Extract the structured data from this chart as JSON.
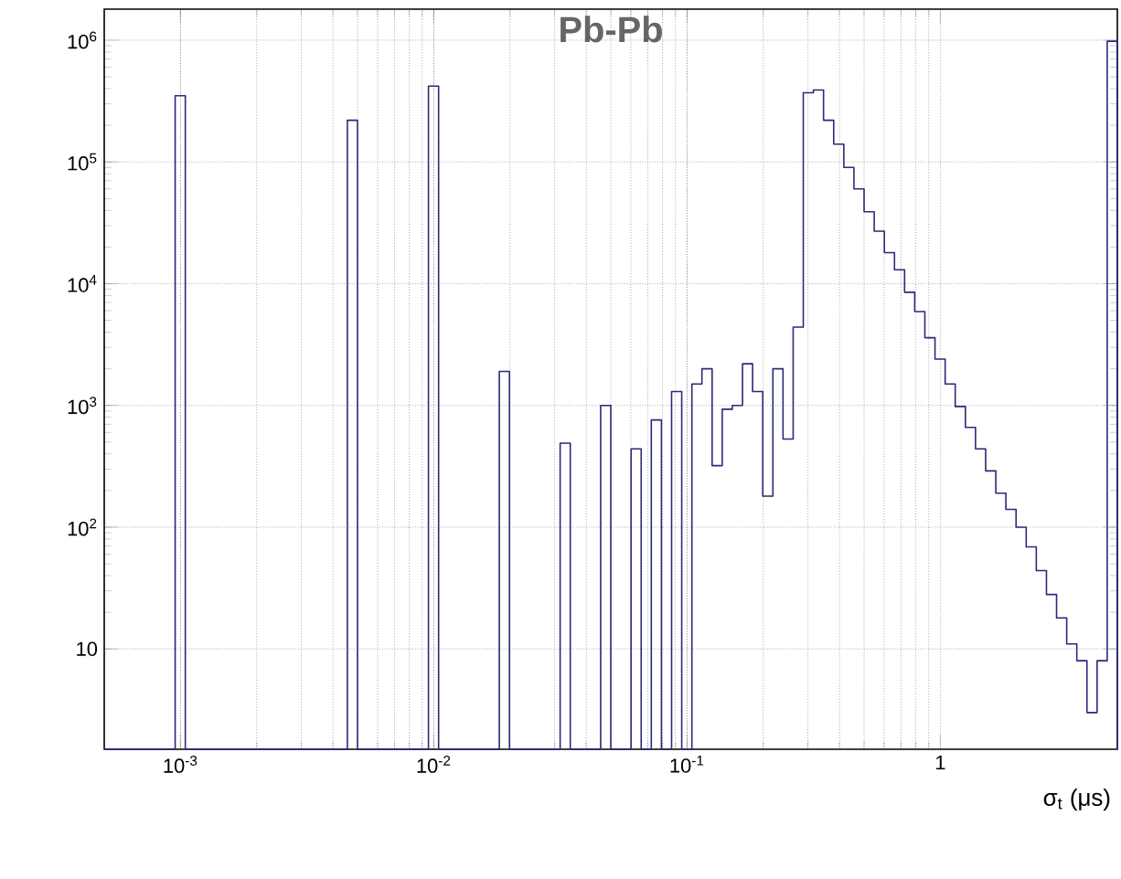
{
  "chart_data": {
    "type": "histogram",
    "title": "Pb-Pb",
    "xlabel": "σ$_{t}$ (μs)",
    "color": "#2a2a7a",
    "log": "xy",
    "grid": true,
    "bins": [
      0.0005,
      0.0005483,
      0.0006012,
      0.0006592,
      0.0007227,
      0.0007924,
      0.0008689,
      0.0009528,
      0.001045,
      0.001145,
      0.001256,
      0.001377,
      0.00151,
      0.001656,
      0.001815,
      0.001991,
      0.002183,
      0.002393,
      0.002624,
      0.002877,
      0.003155,
      0.003459,
      0.003793,
      0.004159,
      0.00456,
      0.005,
      0.005483,
      0.006012,
      0.006592,
      0.007227,
      0.007924,
      0.008689,
      0.009528,
      0.01045,
      0.01145,
      0.01256,
      0.01377,
      0.0151,
      0.01656,
      0.01815,
      0.01991,
      0.02183,
      0.02393,
      0.02624,
      0.02877,
      0.03155,
      0.03459,
      0.03793,
      0.04159,
      0.0456,
      0.05,
      0.05483,
      0.06012,
      0.06592,
      0.07227,
      0.07924,
      0.08689,
      0.09528,
      0.1045,
      0.1145,
      0.1256,
      0.1377,
      0.151,
      0.1656,
      0.1815,
      0.1991,
      0.2183,
      0.2393,
      0.2624,
      0.2877,
      0.3155,
      0.3459,
      0.3793,
      0.4159,
      0.456,
      0.5,
      0.5483,
      0.6012,
      0.6592,
      0.7227,
      0.7924,
      0.8689,
      0.9528,
      1.045,
      1.145,
      1.256,
      1.377,
      1.51,
      1.656,
      1.815,
      1.991,
      2.183,
      2.393,
      2.624,
      2.877,
      3.155,
      3.459,
      3.793,
      4.159,
      4.56,
      5
    ],
    "values": [
      null,
      null,
      null,
      null,
      null,
      null,
      null,
      350000,
      null,
      null,
      null,
      null,
      null,
      null,
      null,
      null,
      null,
      null,
      null,
      null,
      null,
      null,
      null,
      null,
      220000,
      null,
      null,
      null,
      null,
      null,
      null,
      null,
      420000,
      null,
      null,
      null,
      null,
      null,
      null,
      1900,
      null,
      null,
      null,
      null,
      null,
      490,
      null,
      null,
      null,
      1000,
      null,
      null,
      440,
      null,
      760,
      null,
      1300,
      null,
      1500,
      2000,
      320,
      930,
      1000,
      2200,
      1300,
      180,
      2000,
      530,
      4400,
      370000,
      390000,
      220000,
      140000,
      90000,
      60000,
      39000,
      27000,
      18000,
      13000,
      8500,
      5900,
      3600,
      2400,
      1500,
      980,
      660,
      440,
      290,
      190,
      140,
      100,
      69,
      44,
      28,
      18,
      11,
      8,
      3,
      8,
      980000
    ],
    "xlim": [
      0.0005,
      5
    ],
    "ylim": [
      1.5,
      1800000
    ],
    "xticks": [
      {
        "value": 0.001,
        "label": "10$^{-3}$"
      },
      {
        "value": 0.01,
        "label": "10$^{-2}$"
      },
      {
        "value": 0.1,
        "label": "10$^{-1}$"
      },
      1
    ],
    "yticks": [
      10,
      {
        "value": 100,
        "label": "10$^{2}$"
      },
      {
        "value": 1000,
        "label": "10$^{3}$"
      },
      {
        "value": 10000,
        "label": "10$^{4}$"
      },
      {
        "value": 100000,
        "label": "10$^{5}$"
      },
      {
        "value": 1000000,
        "label": "10$^{6}$"
      }
    ]
  }
}
